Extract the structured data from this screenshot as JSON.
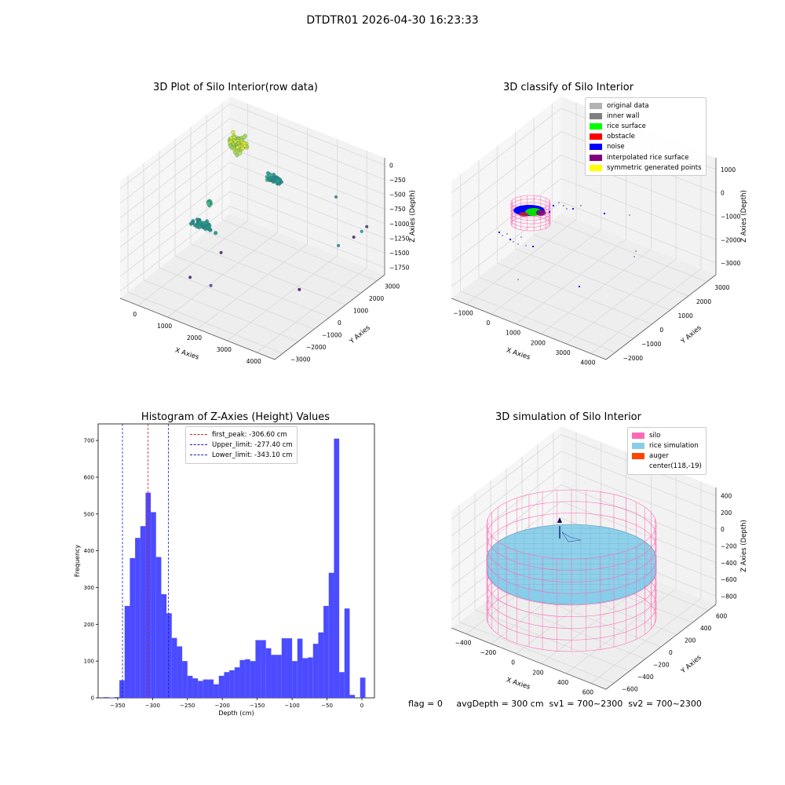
{
  "suptitle": "DTDTR01 2026-04-30 16:23:33",
  "footer": "flag = 0     avgDepth = 300 cm  sv1 = 700~2300  sv2 = 700~2300",
  "colors": {
    "hist": "#4b4bff",
    "first_peak": "#e11a1a",
    "limits": "#1a1acc",
    "grid": "#d9d9d9",
    "pane": "#f2f2f2"
  },
  "chart_data": [
    {
      "type": "scatter3d",
      "title": "3D Plot of Silo Interior(row data)",
      "xlabel": "X Axies",
      "ylabel": "Y Axies",
      "zlabel": "Z Axies (Depth)",
      "xticks": [
        "0",
        "1000",
        "2000",
        "3000",
        "4000"
      ],
      "yticks": [
        "3000",
        "2000",
        "1000",
        "0",
        "−1000",
        "−2000",
        "−3000"
      ],
      "zticks": [
        "0",
        "−250",
        "−500",
        "−750",
        "−1000",
        "−1250",
        "−1500",
        "−1750"
      ],
      "xlim": [
        -600,
        4200
      ],
      "ylim": [
        -3200,
        3400
      ],
      "zlim": [
        -1900,
        100
      ],
      "colormap": "viridis",
      "clusters": [
        {
          "x": 200,
          "y": 2300,
          "z": -280,
          "spread": [
            220,
            260,
            120
          ],
          "n": 140,
          "shade": 0.9
        },
        {
          "x": 1400,
          "y": 2200,
          "z": -620,
          "spread": [
            220,
            120,
            60
          ],
          "n": 40,
          "shade": 0.5
        },
        {
          "x": 300,
          "y": 0,
          "z": -1150,
          "spread": [
            380,
            120,
            50
          ],
          "n": 50,
          "shade": 0.5
        },
        {
          "x": 200,
          "y": 600,
          "z": -900,
          "spread": [
            80,
            120,
            60
          ],
          "n": 6,
          "shade": 0.6
        }
      ],
      "points": [
        {
          "x": 3900,
          "y": 2600,
          "z": -1050,
          "shade": 0.45
        },
        {
          "x": 3800,
          "y": 1400,
          "z": -1050,
          "shade": 0.4
        },
        {
          "x": 3000,
          "y": 2800,
          "z": -700,
          "shade": 0.4
        },
        {
          "x": 1700,
          "y": -2200,
          "z": -1400,
          "shade": 0.2
        },
        {
          "x": 3000,
          "y": 600,
          "z": -1800,
          "shade": 0.05
        },
        {
          "x": 3500,
          "y": 2900,
          "z": -1300,
          "shade": 0.1
        },
        {
          "x": 3800,
          "y": 3100,
          "z": -1100,
          "shade": 0.15
        },
        {
          "x": 1500,
          "y": -1200,
          "z": -1100,
          "shade": 0.1
        },
        {
          "x": 900,
          "y": -1900,
          "z": -1500,
          "shade": 0.1
        }
      ]
    },
    {
      "type": "scatter3d",
      "title": "3D classify of Silo Interior",
      "xlabel": "X Axies",
      "ylabel": "Y Axies",
      "zlabel": "Z Axies (Depth)",
      "xticks": [
        "−1000",
        "0",
        "1000",
        "2000",
        "3000",
        "4000"
      ],
      "yticks": [
        "3000",
        "2000",
        "1000",
        "0",
        "−1000",
        "−2000"
      ],
      "zticks": [
        "1000",
        "0",
        "−1000",
        "−2000",
        "−3000"
      ],
      "xlim": [
        -1500,
        4500
      ],
      "ylim": [
        -2500,
        3400
      ],
      "zlim": [
        -3600,
        1800
      ],
      "legend": [
        {
          "label": "original data",
          "color": "#b3b3b3"
        },
        {
          "label": "inner wall",
          "color": "#808080"
        },
        {
          "label": "rice surface",
          "color": "#00ff00"
        },
        {
          "label": "obstacle",
          "color": "#ff0000"
        },
        {
          "label": "noise",
          "color": "#0000ff"
        },
        {
          "label": "interpolated rice surface",
          "color": "#800080"
        },
        {
          "label": "symmetric generated points",
          "color": "#ffff00"
        }
      ]
    },
    {
      "type": "bar",
      "title": "Histogram of Z-Axies (Height) Values",
      "xlabel": "Depth (cm)",
      "ylabel": "Frequency",
      "xlim": [
        -378,
        18
      ],
      "ylim": [
        0,
        745
      ],
      "xticks": [
        -350,
        -300,
        -250,
        -200,
        -150,
        -100,
        -50,
        0
      ],
      "yticks": [
        0,
        100,
        200,
        300,
        400,
        500,
        600,
        700
      ],
      "bin_start": -370,
      "bin_width": 7.5,
      "values": [
        2,
        1,
        2,
        48,
        250,
        380,
        435,
        467,
        558,
        505,
        383,
        282,
        230,
        163,
        140,
        100,
        60,
        53,
        46,
        50,
        50,
        37,
        60,
        70,
        75,
        83,
        103,
        105,
        100,
        157,
        157,
        135,
        117,
        117,
        162,
        162,
        100,
        161,
        108,
        110,
        147,
        178,
        250,
        340,
        705,
        70,
        243,
        8,
        0,
        55
      ],
      "vlines": [
        {
          "label": "first_peak: -306.60 cm",
          "x": -306.6,
          "color": "#e11a1a"
        },
        {
          "label": "Upper_limit: -277.40 cm",
          "x": -277.4,
          "color": "#1a1acc"
        },
        {
          "label": "Lower_limit: -343.10 cm",
          "x": -343.1,
          "color": "#1a1acc"
        }
      ]
    },
    {
      "type": "surface3d",
      "title": "3D simulation of Silo Interior",
      "xlabel": "X Axies",
      "ylabel": "Y Axies",
      "zlabel": "Z Axies (Depth)",
      "xticks": [
        "−400",
        "−200",
        "0",
        "200",
        "400",
        "600"
      ],
      "yticks": [
        "600",
        "400",
        "200",
        "0",
        "−200",
        "−400",
        "−600"
      ],
      "zticks": [
        "400",
        "200",
        "0",
        "−200",
        "−400",
        "−600",
        "−800"
      ],
      "xlim": [
        -600,
        800
      ],
      "ylim": [
        -700,
        700
      ],
      "zlim": [
        -1000,
        500
      ],
      "silo_radius": 600,
      "silo_center": [
        118,
        -19
      ],
      "silo_z": [
        -1000,
        0
      ],
      "rice_level": -300,
      "legend": [
        {
          "label": "silo",
          "color": "#ff69b4"
        },
        {
          "label": "rice simulation",
          "color": "#87ceeb"
        },
        {
          "label": "auger",
          "color": "#ff4500"
        },
        {
          "label": "center(118,-19)",
          "color": ""
        }
      ]
    }
  ]
}
